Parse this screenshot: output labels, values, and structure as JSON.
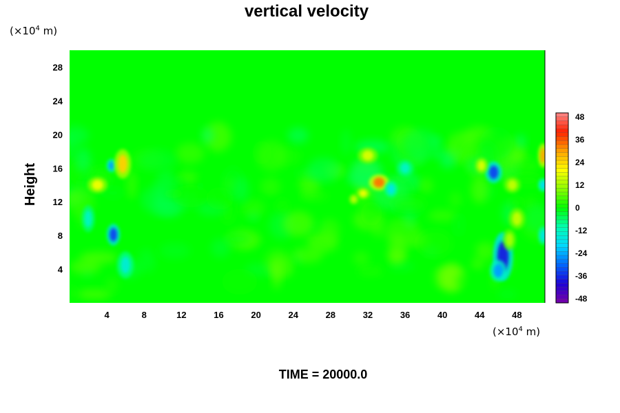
{
  "chart_data": {
    "type": "heatmap",
    "title": "vertical velocity",
    "ylabel": "Height",
    "x_unit": {
      "prefix": "(×10",
      "exponent": "4",
      "suffix": " m)"
    },
    "y_unit": {
      "prefix": "(×10",
      "exponent": "4",
      "suffix": " m)"
    },
    "xlim": [
      0,
      51
    ],
    "ylim": [
      0,
      30
    ],
    "x_ticks": [
      4,
      8,
      12,
      16,
      20,
      24,
      28,
      32,
      36,
      40,
      44,
      48
    ],
    "y_ticks": [
      4,
      8,
      12,
      16,
      20,
      24,
      28
    ],
    "colorbar": {
      "min": -48,
      "max": 48,
      "ticks": [
        48,
        36,
        24,
        12,
        0,
        -12,
        -24,
        -36,
        -48
      ],
      "stops": [
        "#7a00a8",
        "#1d00d6",
        "#0066ff",
        "#00d8ff",
        "#00ffb0",
        "#00ff00",
        "#8cff00",
        "#ffff00",
        "#ffa000",
        "#ff2000",
        "#ff8a8a"
      ]
    },
    "features": [
      {
        "x": 46.5,
        "y": 5.5,
        "value": -36,
        "rx": 0.6,
        "ry": 1.8
      },
      {
        "x": 46.0,
        "y": 3.8,
        "value": -24,
        "rx": 0.5,
        "ry": 0.8
      },
      {
        "x": 45.5,
        "y": 15.5,
        "value": -32,
        "rx": 0.5,
        "ry": 0.8
      },
      {
        "x": 4.7,
        "y": 8.1,
        "value": -32,
        "rx": 0.4,
        "ry": 0.8
      },
      {
        "x": 4.5,
        "y": 16.3,
        "value": -24,
        "rx": 0.3,
        "ry": 0.5
      },
      {
        "x": 5.7,
        "y": 16.5,
        "value": 24,
        "rx": 0.5,
        "ry": 1.1
      },
      {
        "x": 3.0,
        "y": 14.0,
        "value": 18,
        "rx": 0.6,
        "ry": 0.6
      },
      {
        "x": 33.2,
        "y": 14.3,
        "value": 32,
        "rx": 0.6,
        "ry": 0.6
      },
      {
        "x": 31.5,
        "y": 13.0,
        "value": 18,
        "rx": 0.4,
        "ry": 0.4
      },
      {
        "x": 30.5,
        "y": 12.3,
        "value": 14,
        "rx": 0.3,
        "ry": 0.4
      },
      {
        "x": 32.0,
        "y": 17.5,
        "value": 16,
        "rx": 0.6,
        "ry": 0.6
      },
      {
        "x": 34.5,
        "y": 13.5,
        "value": -16,
        "rx": 0.4,
        "ry": 0.6
      },
      {
        "x": 44.2,
        "y": 16.3,
        "value": 16,
        "rx": 0.4,
        "ry": 0.6
      },
      {
        "x": 47.5,
        "y": 14.0,
        "value": 14,
        "rx": 0.5,
        "ry": 0.6
      },
      {
        "x": 48.0,
        "y": 10.0,
        "value": 14,
        "rx": 0.5,
        "ry": 0.8
      },
      {
        "x": 50.8,
        "y": 17.5,
        "value": 28,
        "rx": 0.3,
        "ry": 0.9
      },
      {
        "x": 50.8,
        "y": 14.0,
        "value": -18,
        "rx": 0.3,
        "ry": 0.5
      },
      {
        "x": 50.8,
        "y": 8.0,
        "value": -16,
        "rx": 0.3,
        "ry": 0.7
      },
      {
        "x": 47.2,
        "y": 7.5,
        "value": 12,
        "rx": 0.4,
        "ry": 0.8
      },
      {
        "x": 6.0,
        "y": 4.5,
        "value": -14,
        "rx": 0.5,
        "ry": 1.0
      },
      {
        "x": 2.0,
        "y": 10.0,
        "value": -12,
        "rx": 0.4,
        "ry": 1.0
      },
      {
        "x": 36.0,
        "y": 16.0,
        "value": -12,
        "rx": 0.5,
        "ry": 0.6
      }
    ]
  },
  "footer": {
    "time_label": "TIME = 20000.0"
  }
}
